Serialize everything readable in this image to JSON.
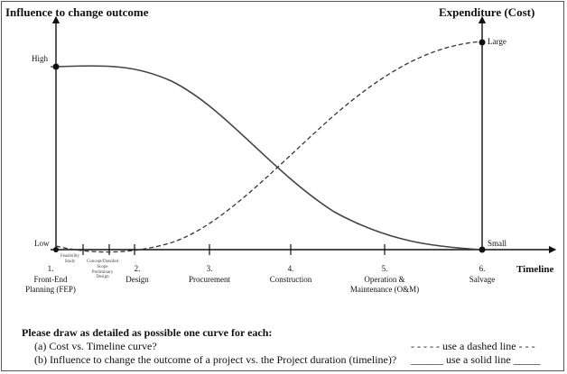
{
  "header": {
    "left_title": "Influence to change outcome",
    "right_title": "Expenditure (Cost)"
  },
  "left_axis": {
    "high": "High",
    "low": "Low"
  },
  "right_axis": {
    "large": "Large",
    "small": "Small"
  },
  "x_axis_label": "Timeline",
  "sub_phases": {
    "feasibility": "Feasibility\nStudy",
    "concept": "Concept/Detailed\nScope\nPreliminary\nDesign"
  },
  "stages": [
    {
      "number": "1.",
      "name": "Front-End\nPlanning (FEP)"
    },
    {
      "number": "2.",
      "name": "Design"
    },
    {
      "number": "3.",
      "name": "Procurement"
    },
    {
      "number": "4.",
      "name": "Construction"
    },
    {
      "number": "5.",
      "name": "Operation &\nMaintenance (O&M)"
    },
    {
      "number": "6.",
      "name": "Salvage"
    }
  ],
  "instructions": {
    "heading": "Please draw as detailed as possible one curve for each:",
    "item_a": "(a) Cost vs. Timeline curve?",
    "item_b": "(b) Influence to change the outcome of a project vs. the Project duration (timeline)?",
    "legend_a": "- - - - - use a dashed line - - -",
    "legend_b_blank1": "______",
    "legend_b": "use a solid line",
    "legend_b_blank2": "_____"
  },
  "colors": {
    "line": "#2a2a2a",
    "axis": "#111111"
  }
}
